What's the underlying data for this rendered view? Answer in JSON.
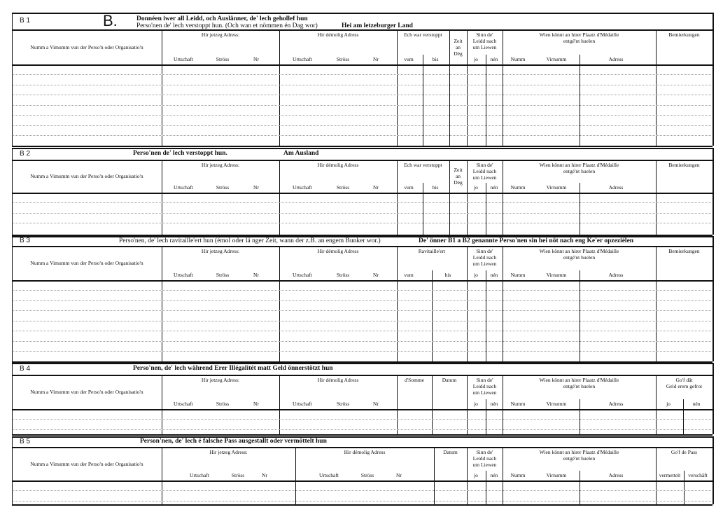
{
  "form": {
    "letter": "B.",
    "sections": [
      {
        "id": "B 1",
        "title": [
          {
            "text": "Donnéen iwer all Leidd, och Auslänner, de' lech gehollef hun",
            "bold": true
          },
          {
            "text": "Perso'nen de' lech verstoppt hun. (Och wan et nömmen én Dag wor)",
            "bold": false
          },
          {
            "text": "Hei am letzeburger Land",
            "bold": true
          }
        ],
        "columns": [
          {
            "label": "Numm a Vimumm vun der Perso'n oder Organisatio'n",
            "subs": []
          },
          {
            "label": "Hir jetzeg Adress:",
            "subs": [
              "Urtschaft",
              "Ströss",
              "Nr"
            ]
          },
          {
            "label": "Hir démolig Adress",
            "subs": [
              "Urtschaft",
              "Ströss",
              "Nr"
            ]
          },
          {
            "label": "Ech war verstoppt",
            "subs": [
              "vum",
              "bis"
            ]
          },
          {
            "label": "Zeit\nan\nDég",
            "subs": []
          },
          {
            "label": "Sinn de'\nLeidd nach\num Liewen",
            "subs": [
              "jo",
              "nén"
            ]
          },
          {
            "label": "Wien könnt an hirer Plaatz d'Médaille\nentgé'nt huelen",
            "subs": [
              "Numm",
              "Virnumm",
              "Adress"
            ]
          },
          {
            "label": "Bemierkungen",
            "subs": []
          }
        ]
      },
      {
        "id": "B 2",
        "title": [
          {
            "text": "Perso'nen de' lech verstoppt hun.",
            "bold": true
          },
          {
            "text": "Am Ausland",
            "bold": true
          }
        ],
        "columns": [
          {
            "label": "Numm a Vimumm vun der Perso'n oder Organisatio'n",
            "subs": []
          },
          {
            "label": "Hir jetzeg Adress:",
            "subs": [
              "Urtschaft",
              "Ströss",
              "Nr"
            ]
          },
          {
            "label": "Hir démolig Adress",
            "subs": [
              "Urtschaft",
              "Ströss",
              "Nr"
            ]
          },
          {
            "label": "Ech war verstoppt",
            "subs": [
              "vum",
              "bis"
            ]
          },
          {
            "label": "Zeit\nan\nDég",
            "subs": []
          },
          {
            "label": "Sinn de'\nLeidd nach\num Liewen",
            "subs": [
              "jo",
              "nén"
            ]
          },
          {
            "label": "Wien könnt an hirer Plaatz d'Médaille\nentgé'nt huelen",
            "subs": [
              "Numm",
              "Virnumm",
              "Adress"
            ]
          },
          {
            "label": "Bemierkungen",
            "subs": []
          }
        ]
      },
      {
        "id": "B 3",
        "title": [
          {
            "text": "Perso'nen, de' lech ravitaille'ert hun (émol oder lä nger Zeit, wann der z.B. an engem Bunker wor.)",
            "bold": false
          },
          {
            "text": "De' önner B1 a B2 genannte Perso'nen sin hei nöt nach eng Ke'er opzeziélen",
            "bold": true
          }
        ],
        "columns": [
          {
            "label": "Numm a Vimumm vun der Perso'n oder Organisatio'n",
            "subs": []
          },
          {
            "label": "Hir jetzeg Adress:",
            "subs": [
              "Urtschaft",
              "Ströss",
              "Nr"
            ]
          },
          {
            "label": "Hir démolig Adress",
            "subs": [
              "Urtschaft",
              "Ströss",
              "Nr"
            ]
          },
          {
            "label": "Ravitaille'ert",
            "subs": [
              "vum",
              "bis"
            ]
          },
          {
            "label": "Sinn de'\nLeidd nach\num Liewen",
            "subs": [
              "jo",
              "nén"
            ]
          },
          {
            "label": "Wien könnt an hirer Plaatz d'Médaille\nentgé'nt huelen",
            "subs": [
              "Numm",
              "Virnumm",
              "Adress"
            ]
          },
          {
            "label": "Bemierkungen",
            "subs": []
          }
        ]
      },
      {
        "id": "B 4",
        "title": [
          {
            "text": "Perso'nen, de' lech während Erer Illégalitét matt Geld önnerstötzt hun",
            "bold": true
          }
        ],
        "columns": [
          {
            "label": "Numm a Vimumm vun der Perso'n oder Organisatio'n",
            "subs": []
          },
          {
            "label": "Hir jetzeg Adress:",
            "subs": [
              "Urtschaft",
              "Ströss",
              "Nr"
            ]
          },
          {
            "label": "Hir démolig Adress",
            "subs": [
              "Urtschaft",
              "Ströss",
              "Nr"
            ]
          },
          {
            "label": "d'Somme",
            "subs": []
          },
          {
            "label": "Datum",
            "subs": []
          },
          {
            "label": "Sinn de'\nLeidd nach\num Liewen",
            "subs": [
              "jo",
              "nén"
            ]
          },
          {
            "label": "Wien könnt an hirer Plaatz d'Médaille\nentgé'nt huelen",
            "subs": [
              "Numm",
              "Virnumm",
              "Adress"
            ]
          },
          {
            "label": "Go'f dât\nGeld erem gefrot",
            "subs": [
              "jo",
              "nén"
            ]
          }
        ]
      },
      {
        "id": "B 5",
        "title": [
          {
            "text": "Person'nen, de' lech é falsche Pass ausgestallt oder vermöttelt hun",
            "bold": true
          }
        ],
        "columns": [
          {
            "label": "Numm a Vimumm vun der Perso'n oder Organisatio'n",
            "subs": []
          },
          {
            "label": "Hir jetzeg Adress:",
            "subs": [
              "Urtschaft",
              "Ströss",
              "Nr"
            ]
          },
          {
            "label": "Hir démolig Adress",
            "subs": [
              "Urtschaft",
              "Ströss",
              "Nr"
            ]
          },
          {
            "label": "Datum",
            "subs": []
          },
          {
            "label": "Sinn de'\nLeidd nach\num Liewen",
            "subs": [
              "jo",
              "nén"
            ]
          },
          {
            "label": "Wien könnt an hirer Plaatz d'Médaille\nentgé'nt huelen",
            "subs": [
              "Numm",
              "Virnumm",
              "Adress"
            ]
          },
          {
            "label": "Go'f de Pass",
            "subs": [
              "vermettelt",
              "verschâft"
            ]
          }
        ]
      }
    ]
  }
}
